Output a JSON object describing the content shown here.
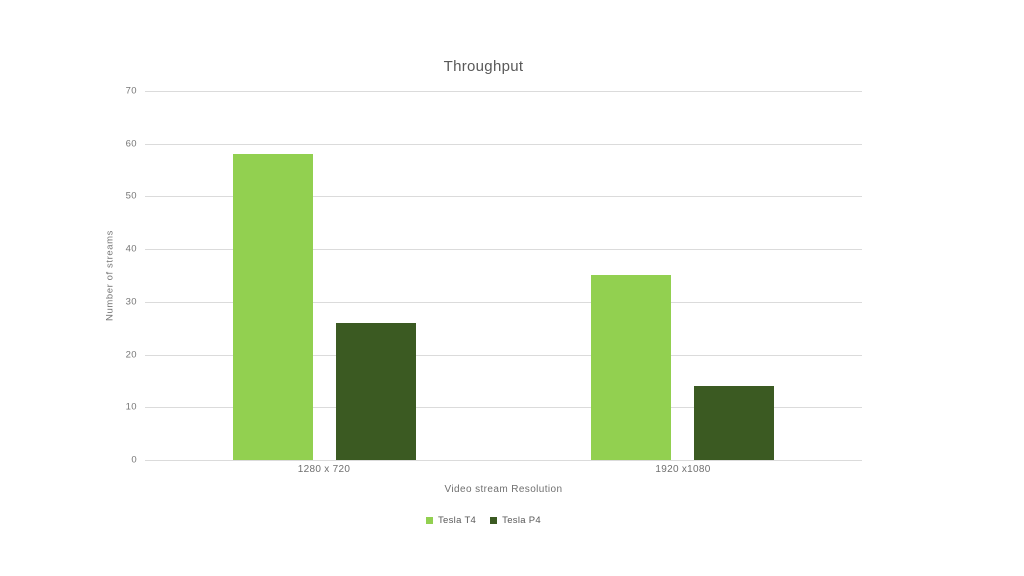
{
  "chart_data": {
    "type": "bar",
    "title": "Throughput",
    "categories": [
      "1280 x 720",
      "1920 x1080"
    ],
    "series": [
      {
        "name": "Tesla T4",
        "color": "#92d050",
        "values": [
          58,
          35
        ]
      },
      {
        "name": "Tesla P4",
        "color": "#3b5a22",
        "values": [
          26,
          14
        ]
      }
    ],
    "xlabel": "Video stream Resolution",
    "ylabel": "Number of streams",
    "ylim": [
      0,
      70
    ],
    "ytick_step": 10,
    "yticks": [
      0,
      10,
      20,
      30,
      40,
      50,
      60,
      70
    ],
    "grid": true,
    "legend_position": "bottom-center",
    "background": "#ffffff"
  },
  "colors": {
    "gridline": "#dbdbdb",
    "title_text": "#595959",
    "axis_text": "#6f6f6f",
    "tick_text": "#757575"
  }
}
